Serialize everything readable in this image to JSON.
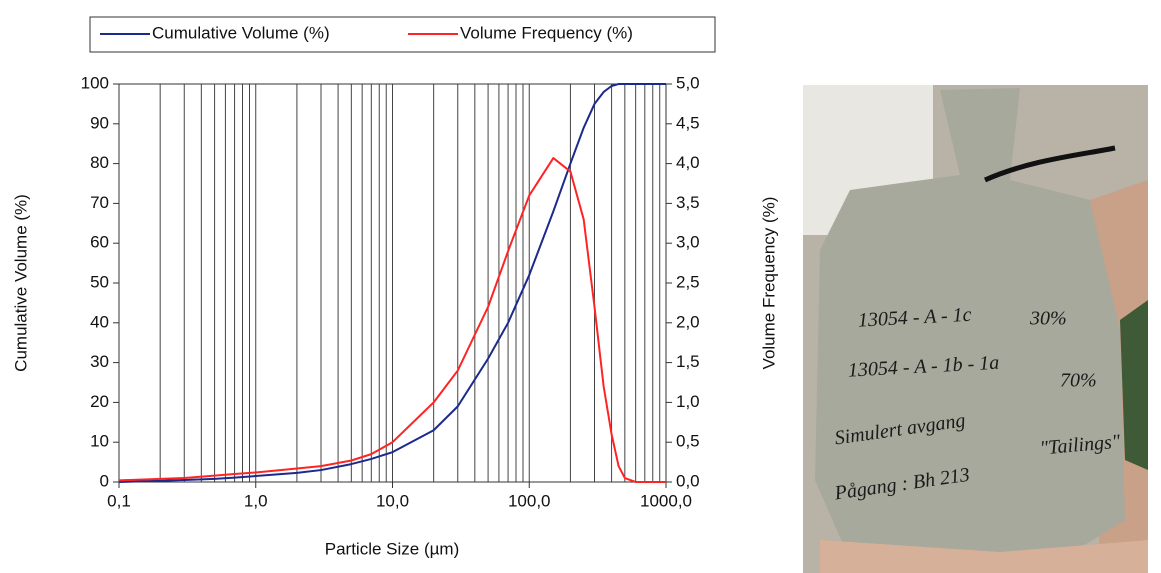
{
  "chart_data": {
    "type": "line",
    "x_label": "Particle Size (µm)",
    "y_label": "Cumulative Volume (%)",
    "y2_label": "Volume Frequency (%)",
    "x": [
      0.1,
      0.2,
      0.3,
      0.5,
      0.7,
      1,
      2,
      3,
      5,
      7,
      10,
      20,
      30,
      50,
      70,
      100,
      150,
      200,
      250,
      300,
      350,
      400,
      450,
      500,
      600,
      1000
    ],
    "series": [
      {
        "name": "Cumulative Volume (%)",
        "color": "#1c2a8c",
        "values": [
          0,
          0.3,
          0.5,
          0.8,
          1.1,
          1.5,
          2.3,
          3,
          4.5,
          5.8,
          7.5,
          13,
          19,
          31,
          40,
          52,
          68,
          80,
          89,
          95,
          98,
          99.5,
          100,
          100,
          100,
          100
        ]
      },
      {
        "name": "Volume Frequency (%)",
        "color": "#ff2424",
        "axis": "y2",
        "values": [
          0.02,
          0.04,
          0.05,
          0.08,
          0.1,
          0.12,
          0.17,
          0.2,
          0.27,
          0.35,
          0.5,
          1.0,
          1.4,
          2.2,
          2.9,
          3.6,
          4.07,
          3.9,
          3.3,
          2.2,
          1.2,
          0.6,
          0.2,
          0.05,
          0,
          0
        ]
      }
    ],
    "xscale": "log",
    "xlim": [
      0.1,
      1000
    ],
    "xticks": [
      {
        "value": 0.1,
        "label": "0,1"
      },
      {
        "value": 1,
        "label": "1,0"
      },
      {
        "value": 10,
        "label": "10,0"
      },
      {
        "value": 100,
        "label": "100,0"
      },
      {
        "value": 1000,
        "label": "1000,0"
      }
    ],
    "xminorticks": [
      0.2,
      0.3,
      0.4,
      0.5,
      0.6,
      0.7,
      0.8,
      0.9,
      2,
      3,
      4,
      5,
      6,
      7,
      8,
      9,
      20,
      30,
      40,
      50,
      60,
      70,
      80,
      90,
      200,
      300,
      400,
      500,
      600,
      700,
      800,
      900
    ],
    "ylim": [
      0,
      100
    ],
    "yticks": [
      0,
      10,
      20,
      30,
      40,
      50,
      60,
      70,
      80,
      90,
      100
    ],
    "y2lim": [
      0,
      5
    ],
    "y2ticks": [
      {
        "value": 0,
        "label": "0,0"
      },
      {
        "value": 0.5,
        "label": "0,5"
      },
      {
        "value": 1,
        "label": "1,0"
      },
      {
        "value": 1.5,
        "label": "1,5"
      },
      {
        "value": 2,
        "label": "2,0"
      },
      {
        "value": 2.5,
        "label": "2,5"
      },
      {
        "value": 3,
        "label": "3,0"
      },
      {
        "value": 3.5,
        "label": "3,5"
      },
      {
        "value": 4,
        "label": "4,0"
      },
      {
        "value": 4.5,
        "label": "4,5"
      },
      {
        "value": 5,
        "label": "5,0"
      }
    ],
    "grid": true,
    "legend": "top"
  },
  "photo": {
    "labels": [
      "13054 - A - 1c",
      "30%",
      "13054 - A - 1b - 1a",
      "70%",
      "Simulert avgang",
      "\"Tailings\"",
      "Pågang : Bh 213"
    ]
  }
}
